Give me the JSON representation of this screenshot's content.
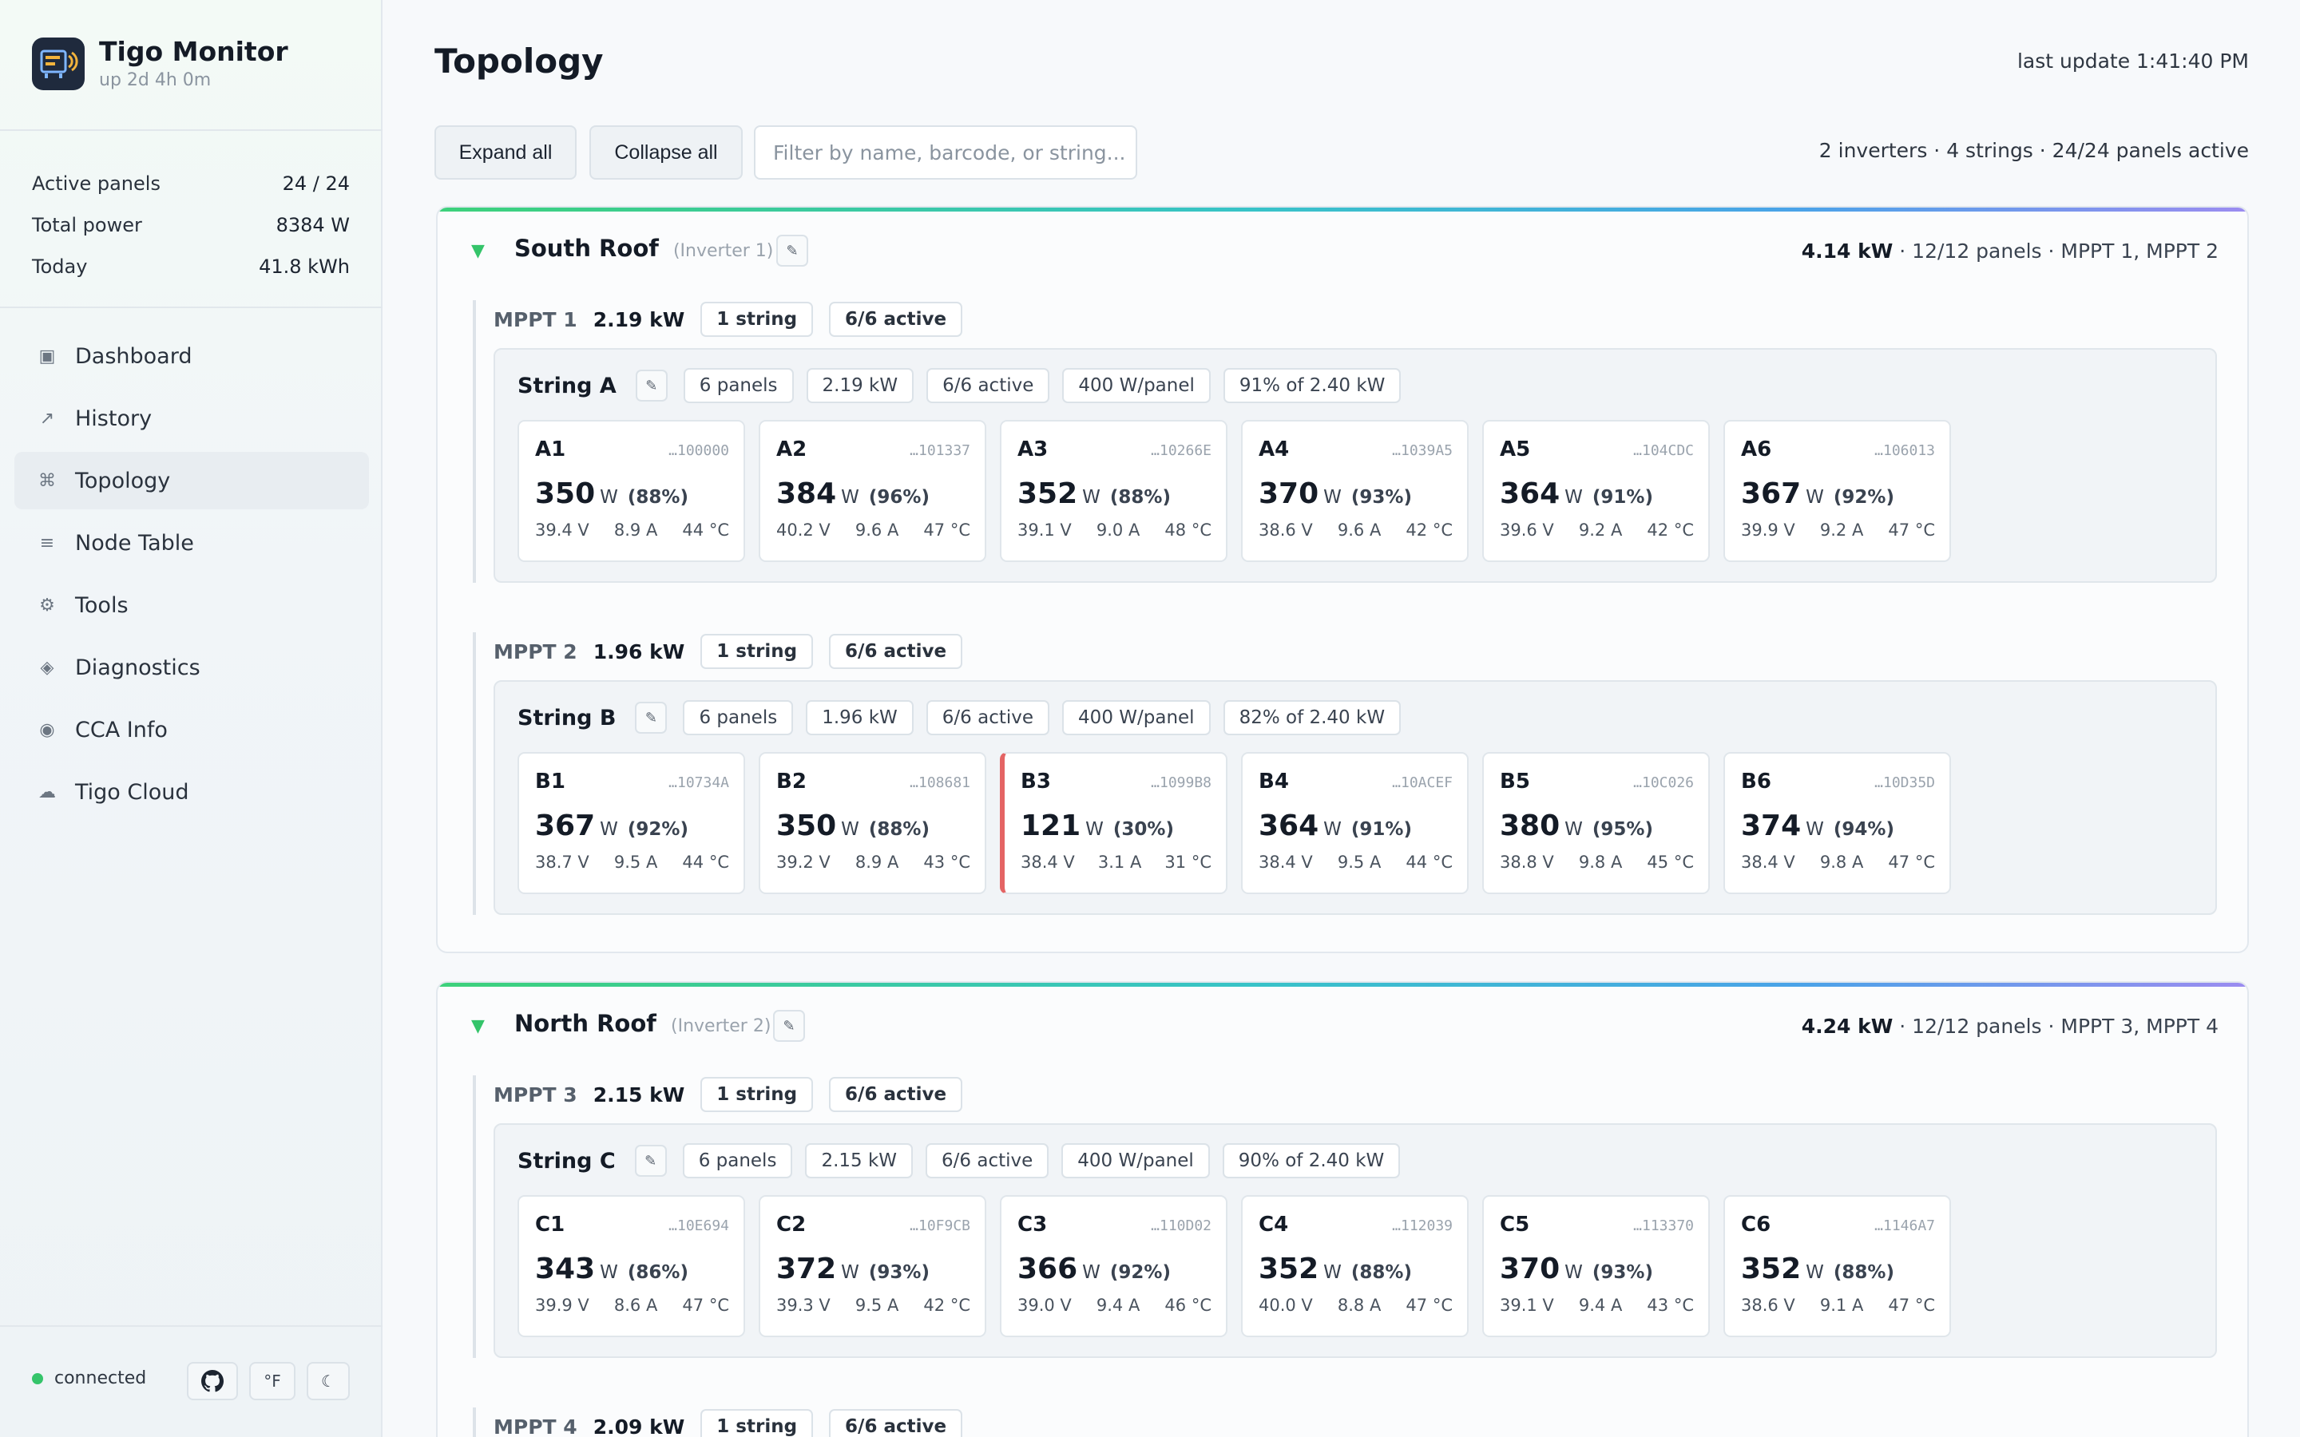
{
  "app": {
    "title": "Tigo Monitor",
    "uptime": "up 2d 4h 0m"
  },
  "stats": [
    {
      "label": "Active panels",
      "value": "24 / 24"
    },
    {
      "label": "Total power",
      "value": "8384 W"
    },
    {
      "label": "Today",
      "value": "41.8 kWh"
    }
  ],
  "nav": [
    {
      "icon": "▣",
      "label": "Dashboard"
    },
    {
      "icon": "↗",
      "label": "History"
    },
    {
      "icon": "⌘",
      "label": "Topology"
    },
    {
      "icon": "≡",
      "label": "Node Table"
    },
    {
      "icon": "⚙",
      "label": "Tools"
    },
    {
      "icon": "◈",
      "label": "Diagnostics"
    },
    {
      "icon": "◉",
      "label": "CCA Info"
    },
    {
      "icon": "☁",
      "label": "Tigo Cloud"
    }
  ],
  "footer": {
    "status": "connected",
    "unit_btn": "°F",
    "theme_btn": "☾"
  },
  "page": {
    "title": "Topology",
    "last_update": "last update 1:41:40 PM",
    "expand_all": "Expand all",
    "collapse_all": "Collapse all",
    "filter_placeholder": "Filter by name, barcode, or string...",
    "summary": "2 inverters · 4 strings · 24/24 panels active"
  },
  "inverters": [
    {
      "name": "South Roof",
      "sub": "(Inverter 1)",
      "power": "4.14 kW",
      "meta": " · 12/12 panels · MPPT 1, MPPT 2",
      "mppts": [
        {
          "name": "MPPT 1",
          "power": "2.19 kW",
          "strings": "1 string",
          "active": "6/6 active",
          "string": {
            "name": "String A",
            "chips": [
              "6 panels",
              "2.19 kW",
              "6/6 active",
              "400 W/panel",
              "91% of 2.40 kW"
            ],
            "panels": [
              {
                "id": "A1",
                "barcode": "…100000",
                "w": "350",
                "pct": "(88%)",
                "v": "39.4 V",
                "a": "8.9 A",
                "t": "44 °C"
              },
              {
                "id": "A2",
                "barcode": "…101337",
                "w": "384",
                "pct": "(96%)",
                "v": "40.2 V",
                "a": "9.6 A",
                "t": "47 °C"
              },
              {
                "id": "A3",
                "barcode": "…10266E",
                "w": "352",
                "pct": "(88%)",
                "v": "39.1 V",
                "a": "9.0 A",
                "t": "48 °C"
              },
              {
                "id": "A4",
                "barcode": "…1039A5",
                "w": "370",
                "pct": "(93%)",
                "v": "38.6 V",
                "a": "9.6 A",
                "t": "42 °C"
              },
              {
                "id": "A5",
                "barcode": "…104CDC",
                "w": "364",
                "pct": "(91%)",
                "v": "39.6 V",
                "a": "9.2 A",
                "t": "42 °C"
              },
              {
                "id": "A6",
                "barcode": "…106013",
                "w": "367",
                "pct": "(92%)",
                "v": "39.9 V",
                "a": "9.2 A",
                "t": "47 °C"
              }
            ]
          }
        },
        {
          "name": "MPPT 2",
          "power": "1.96 kW",
          "strings": "1 string",
          "active": "6/6 active",
          "string": {
            "name": "String B",
            "chips": [
              "6 panels",
              "1.96 kW",
              "6/6 active",
              "400 W/panel",
              "82% of 2.40 kW"
            ],
            "panels": [
              {
                "id": "B1",
                "barcode": "…10734A",
                "w": "367",
                "pct": "(92%)",
                "v": "38.7 V",
                "a": "9.5 A",
                "t": "44 °C"
              },
              {
                "id": "B2",
                "barcode": "…108681",
                "w": "350",
                "pct": "(88%)",
                "v": "39.2 V",
                "a": "8.9 A",
                "t": "43 °C"
              },
              {
                "id": "B3",
                "barcode": "…1099B8",
                "w": "121",
                "pct": "(30%)",
                "v": "38.4 V",
                "a": "3.1 A",
                "t": "31 °C",
                "warn": true
              },
              {
                "id": "B4",
                "barcode": "…10ACEF",
                "w": "364",
                "pct": "(91%)",
                "v": "38.4 V",
                "a": "9.5 A",
                "t": "44 °C"
              },
              {
                "id": "B5",
                "barcode": "…10C026",
                "w": "380",
                "pct": "(95%)",
                "v": "38.8 V",
                "a": "9.8 A",
                "t": "45 °C"
              },
              {
                "id": "B6",
                "barcode": "…10D35D",
                "w": "374",
                "pct": "(94%)",
                "v": "38.4 V",
                "a": "9.8 A",
                "t": "47 °C"
              }
            ]
          }
        }
      ]
    },
    {
      "name": "North Roof",
      "sub": "(Inverter 2)",
      "power": "4.24 kW",
      "meta": " · 12/12 panels · MPPT 3, MPPT 4",
      "mppts": [
        {
          "name": "MPPT 3",
          "power": "2.15 kW",
          "strings": "1 string",
          "active": "6/6 active",
          "string": {
            "name": "String C",
            "chips": [
              "6 panels",
              "2.15 kW",
              "6/6 active",
              "400 W/panel",
              "90% of 2.40 kW"
            ],
            "panels": [
              {
                "id": "C1",
                "barcode": "…10E694",
                "w": "343",
                "pct": "(86%)",
                "v": "39.9 V",
                "a": "8.6 A",
                "t": "47 °C"
              },
              {
                "id": "C2",
                "barcode": "…10F9CB",
                "w": "372",
                "pct": "(93%)",
                "v": "39.3 V",
                "a": "9.5 A",
                "t": "42 °C"
              },
              {
                "id": "C3",
                "barcode": "…110D02",
                "w": "366",
                "pct": "(92%)",
                "v": "39.0 V",
                "a": "9.4 A",
                "t": "46 °C"
              },
              {
                "id": "C4",
                "barcode": "…112039",
                "w": "352",
                "pct": "(88%)",
                "v": "40.0 V",
                "a": "8.8 A",
                "t": "47 °C"
              },
              {
                "id": "C5",
                "barcode": "…113370",
                "w": "370",
                "pct": "(93%)",
                "v": "39.1 V",
                "a": "9.4 A",
                "t": "43 °C"
              },
              {
                "id": "C6",
                "barcode": "…1146A7",
                "w": "352",
                "pct": "(88%)",
                "v": "38.6 V",
                "a": "9.1 A",
                "t": "47 °C"
              }
            ]
          }
        },
        {
          "name": "MPPT 4",
          "power": "2.09 kW",
          "strings": "1 string",
          "active": "6/6 active"
        }
      ]
    }
  ],
  "colors": {
    "accent": "#34c46a",
    "warn": "#e46464"
  }
}
